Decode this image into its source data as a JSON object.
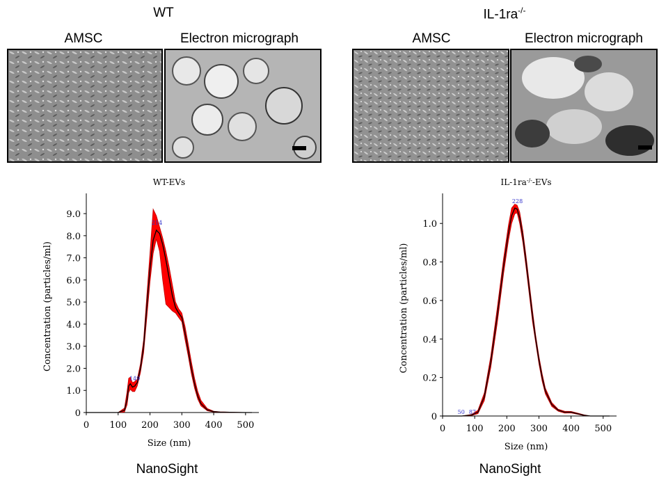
{
  "panels": [
    {
      "title": "WT",
      "image_labels": [
        "AMSC",
        "Electron micrograph"
      ],
      "footer": "NanoSight"
    },
    {
      "title": "IL-1ra",
      "title_sup": "-/-",
      "image_labels": [
        "AMSC",
        "Electron micrograph"
      ],
      "footer": "NanoSight"
    }
  ],
  "colors": {
    "band": "#ff0000",
    "band_edge": "#c00000",
    "line": "#000000",
    "peak_label": "#3333cc",
    "micrograph_bg": "#b0b0b0",
    "cells_bg": "#8e8e8e"
  },
  "chart_data": [
    {
      "type": "line",
      "title": "WT-EVs",
      "xlabel": "Size (nm)",
      "ylabel": "Concentration (particles/ml)",
      "xlim": [
        0,
        520
      ],
      "ylim": [
        0,
        9.6
      ],
      "xticks": [
        "0",
        "100",
        "200",
        "300",
        "400",
        "500"
      ],
      "yticks": [
        "0",
        "1.0",
        "2.0",
        "3.0",
        "4.0",
        "5.0",
        "6.0",
        "7.0",
        "8.0",
        "9.0"
      ],
      "peak_labels": [
        {
          "text": "214",
          "x": 222,
          "y": 8.5
        },
        {
          "text": "149",
          "x": 152,
          "y": 1.45
        }
      ],
      "series": [
        {
          "x": [
            0,
            100,
            120,
            128,
            133,
            138,
            145,
            152,
            160,
            170,
            180,
            190,
            200,
            210,
            220,
            230,
            240,
            250,
            260,
            270,
            280,
            290,
            300,
            310,
            320,
            330,
            340,
            350,
            360,
            380,
            400,
            420,
            450,
            500,
            520
          ],
          "y": [
            0,
            0,
            0.1,
            0.6,
            1.2,
            1.3,
            1.15,
            1.2,
            1.35,
            2.0,
            3.0,
            4.8,
            6.5,
            7.8,
            8.25,
            8.1,
            7.6,
            6.9,
            6.1,
            5.3,
            4.75,
            4.5,
            4.3,
            3.6,
            2.8,
            2.0,
            1.3,
            0.75,
            0.4,
            0.12,
            0.04,
            0.02,
            0.01,
            0,
            0
          ],
          "upper": [
            0,
            0,
            0.2,
            0.95,
            1.55,
            1.6,
            1.35,
            1.4,
            1.5,
            2.2,
            3.3,
            5.3,
            7.2,
            9.2,
            8.9,
            8.4,
            7.9,
            7.3,
            6.6,
            5.8,
            5.0,
            4.7,
            4.5,
            3.9,
            3.1,
            2.3,
            1.55,
            0.95,
            0.55,
            0.18,
            0.06,
            0.03,
            0.02,
            0,
            0
          ],
          "lower": [
            0,
            0,
            0.02,
            0.35,
            0.9,
            1.05,
            0.95,
            0.95,
            1.2,
            1.8,
            2.7,
            4.3,
            5.9,
            7.2,
            7.85,
            7.3,
            6.0,
            4.9,
            4.75,
            4.6,
            4.5,
            4.3,
            4.1,
            3.3,
            2.55,
            1.75,
            1.1,
            0.6,
            0.3,
            0.08,
            0.02,
            0.01,
            0,
            0,
            0
          ]
        }
      ]
    },
    {
      "type": "line",
      "title": "IL-1ra",
      "title_sup": "-/-",
      "title_suffix": "-EVs",
      "xlabel": "Size (nm)",
      "ylabel": "Concentration (particles/ml)",
      "xlim": [
        0,
        520
      ],
      "ylim": [
        0,
        1.12
      ],
      "xticks": [
        "0",
        "100",
        "200",
        "300",
        "400",
        "500"
      ],
      "yticks": [
        "0",
        "0.2",
        "0.4",
        "0.6",
        "0.8",
        "1.0"
      ],
      "peak_labels": [
        {
          "text": "228",
          "x": 233,
          "y": 1.105
        },
        {
          "text": "50",
          "x": 58,
          "y": 0.01
        },
        {
          "text": "87",
          "x": 93,
          "y": 0.01
        }
      ],
      "series": [
        {
          "x": [
            0,
            60,
            90,
            110,
            130,
            150,
            170,
            190,
            205,
            215,
            225,
            232,
            240,
            250,
            260,
            270,
            280,
            290,
            300,
            310,
            320,
            340,
            360,
            380,
            400,
            420,
            440,
            460,
            500,
            520
          ],
          "y": [
            0,
            0,
            0.005,
            0.02,
            0.1,
            0.28,
            0.52,
            0.78,
            0.95,
            1.04,
            1.08,
            1.075,
            1.03,
            0.93,
            0.8,
            0.66,
            0.52,
            0.4,
            0.29,
            0.2,
            0.13,
            0.06,
            0.03,
            0.02,
            0.02,
            0.012,
            0.004,
            0,
            0,
            0
          ],
          "upper": [
            0,
            0,
            0.008,
            0.03,
            0.12,
            0.31,
            0.56,
            0.82,
            0.99,
            1.08,
            1.1,
            1.095,
            1.06,
            0.96,
            0.83,
            0.69,
            0.55,
            0.42,
            0.31,
            0.22,
            0.145,
            0.07,
            0.035,
            0.025,
            0.024,
            0.015,
            0.006,
            0,
            0,
            0
          ],
          "lower": [
            0,
            0,
            0.002,
            0.012,
            0.08,
            0.25,
            0.48,
            0.74,
            0.91,
            1.0,
            1.05,
            1.055,
            1.0,
            0.9,
            0.77,
            0.63,
            0.49,
            0.38,
            0.27,
            0.18,
            0.115,
            0.05,
            0.025,
            0.015,
            0.016,
            0.009,
            0.002,
            0,
            0,
            0
          ]
        }
      ]
    }
  ]
}
